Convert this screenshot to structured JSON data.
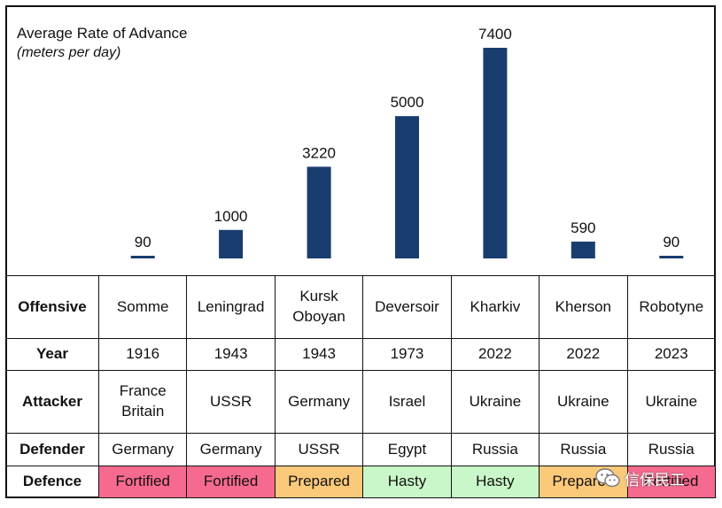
{
  "chart_data": {
    "type": "bar",
    "title": "Average Rate of Advance",
    "subtitle": "(meters per day)",
    "categories": [
      "Somme",
      "Leningrad",
      "Kursk Oboyan",
      "Deversoir",
      "Kharkiv",
      "Kherson",
      "Robotyne"
    ],
    "values": [
      90,
      1000,
      3220,
      5000,
      7400,
      590,
      90
    ],
    "value_labels": [
      "90",
      "1000",
      "3220",
      "5000",
      "7400",
      "590",
      "90"
    ],
    "ylim": [
      0,
      7400
    ],
    "bar_color": "#1a3d6f",
    "grid": false,
    "legend": "none"
  },
  "table": {
    "offensive": {
      "label": "Offensive",
      "values": [
        "Somme",
        "Leningrad",
        [
          "Kursk",
          "Oboyan"
        ],
        "Deversoir",
        "Kharkiv",
        "Kherson",
        "Robotyne"
      ]
    },
    "year": {
      "label": "Year",
      "values": [
        "1916",
        "1943",
        "1943",
        "1973",
        "2022",
        "2022",
        "2023"
      ]
    },
    "attacker": {
      "label": "Attacker",
      "values": [
        [
          "France",
          "Britain"
        ],
        "USSR",
        "Germany",
        "Israel",
        "Ukraine",
        "Ukraine",
        "Ukraine"
      ]
    },
    "defender": {
      "label": "Defender",
      "values": [
        "Germany",
        "Germany",
        "USSR",
        "Egypt",
        "Russia",
        "Russia",
        "Russia"
      ]
    },
    "defence": {
      "label": "Defence",
      "values": [
        "Fortified",
        "Fortified",
        "Prepared",
        "Hasty",
        "Hasty",
        "Prepared",
        "Fortified"
      ]
    }
  },
  "defence_colors": {
    "Fortified": "#f76a8f",
    "Prepared": "#fbc97a",
    "Hasty": "#c9f7c9"
  },
  "watermark": {
    "text": "信保民工",
    "logo": "wechat-logo"
  }
}
